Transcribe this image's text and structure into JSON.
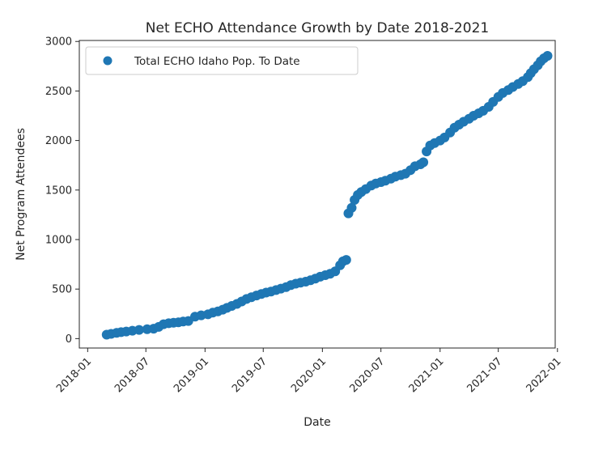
{
  "chart_data": {
    "type": "scatter",
    "title": "Net ECHO Attendance Growth by Date 2018-2021",
    "xlabel": "Date",
    "ylabel": "Net Program Attendees",
    "xlim": [
      "2017-12-06",
      "2021-12-25"
    ],
    "ylim": [
      -95,
      3010
    ],
    "x_ticks": [
      "2018-01",
      "2018-07",
      "2019-01",
      "2019-07",
      "2020-01",
      "2020-07",
      "2021-01",
      "2021-07",
      "2022-01"
    ],
    "y_ticks": [
      0,
      500,
      1000,
      1500,
      2000,
      2500,
      3000
    ],
    "grid": false,
    "legend": "top-left",
    "series": [
      {
        "name": "Total ECHO Idaho Pop. To Date",
        "color": "#1f77b4",
        "points": [
          [
            "2018-03-01",
            40
          ],
          [
            "2018-03-15",
            48
          ],
          [
            "2018-04-01",
            58
          ],
          [
            "2018-04-15",
            65
          ],
          [
            "2018-05-01",
            72
          ],
          [
            "2018-05-20",
            80
          ],
          [
            "2018-06-10",
            88
          ],
          [
            "2018-07-05",
            95
          ],
          [
            "2018-07-25",
            100
          ],
          [
            "2018-08-10",
            118
          ],
          [
            "2018-08-25",
            145
          ],
          [
            "2018-09-10",
            155
          ],
          [
            "2018-09-25",
            160
          ],
          [
            "2018-10-10",
            165
          ],
          [
            "2018-10-25",
            172
          ],
          [
            "2018-11-10",
            178
          ],
          [
            "2018-12-01",
            222
          ],
          [
            "2018-12-20",
            235
          ],
          [
            "2019-01-10",
            245
          ],
          [
            "2019-01-25",
            262
          ],
          [
            "2019-02-10",
            275
          ],
          [
            "2019-02-25",
            292
          ],
          [
            "2019-03-10",
            310
          ],
          [
            "2019-03-25",
            330
          ],
          [
            "2019-04-10",
            350
          ],
          [
            "2019-04-25",
            375
          ],
          [
            "2019-05-10",
            400
          ],
          [
            "2019-05-25",
            418
          ],
          [
            "2019-06-10",
            435
          ],
          [
            "2019-06-25",
            450
          ],
          [
            "2019-07-10",
            465
          ],
          [
            "2019-07-25",
            475
          ],
          [
            "2019-08-10",
            490
          ],
          [
            "2019-08-25",
            505
          ],
          [
            "2019-09-10",
            520
          ],
          [
            "2019-09-25",
            540
          ],
          [
            "2019-10-10",
            555
          ],
          [
            "2019-10-25",
            565
          ],
          [
            "2019-11-10",
            575
          ],
          [
            "2019-11-25",
            590
          ],
          [
            "2019-12-10",
            605
          ],
          [
            "2019-12-25",
            625
          ],
          [
            "2020-01-10",
            640
          ],
          [
            "2020-01-25",
            655
          ],
          [
            "2020-02-10",
            680
          ],
          [
            "2020-02-25",
            740
          ],
          [
            "2020-03-05",
            780
          ],
          [
            "2020-03-15",
            795
          ],
          [
            "2020-03-22",
            1265
          ],
          [
            "2020-04-01",
            1320
          ],
          [
            "2020-04-10",
            1400
          ],
          [
            "2020-04-20",
            1450
          ],
          [
            "2020-05-01",
            1480
          ],
          [
            "2020-05-15",
            1510
          ],
          [
            "2020-06-01",
            1545
          ],
          [
            "2020-06-15",
            1565
          ],
          [
            "2020-07-01",
            1580
          ],
          [
            "2020-07-15",
            1595
          ],
          [
            "2020-08-01",
            1615
          ],
          [
            "2020-08-15",
            1635
          ],
          [
            "2020-09-01",
            1650
          ],
          [
            "2020-09-15",
            1665
          ],
          [
            "2020-10-01",
            1700
          ],
          [
            "2020-10-15",
            1740
          ],
          [
            "2020-11-01",
            1760
          ],
          [
            "2020-11-10",
            1780
          ],
          [
            "2020-11-20",
            1890
          ],
          [
            "2020-12-01",
            1950
          ],
          [
            "2020-12-15",
            1975
          ],
          [
            "2021-01-01",
            2000
          ],
          [
            "2021-01-15",
            2030
          ],
          [
            "2021-02-01",
            2080
          ],
          [
            "2021-02-15",
            2130
          ],
          [
            "2021-03-01",
            2160
          ],
          [
            "2021-03-15",
            2190
          ],
          [
            "2021-04-01",
            2220
          ],
          [
            "2021-04-15",
            2250
          ],
          [
            "2021-05-01",
            2275
          ],
          [
            "2021-05-15",
            2300
          ],
          [
            "2021-06-01",
            2340
          ],
          [
            "2021-06-15",
            2390
          ],
          [
            "2021-07-01",
            2440
          ],
          [
            "2021-07-15",
            2480
          ],
          [
            "2021-08-01",
            2510
          ],
          [
            "2021-08-15",
            2540
          ],
          [
            "2021-09-01",
            2570
          ],
          [
            "2021-09-15",
            2600
          ],
          [
            "2021-10-01",
            2640
          ],
          [
            "2021-10-10",
            2680
          ],
          [
            "2021-10-20",
            2720
          ],
          [
            "2021-11-01",
            2760
          ],
          [
            "2021-11-10",
            2800
          ],
          [
            "2021-11-20",
            2830
          ],
          [
            "2021-12-01",
            2855
          ]
        ]
      }
    ]
  }
}
